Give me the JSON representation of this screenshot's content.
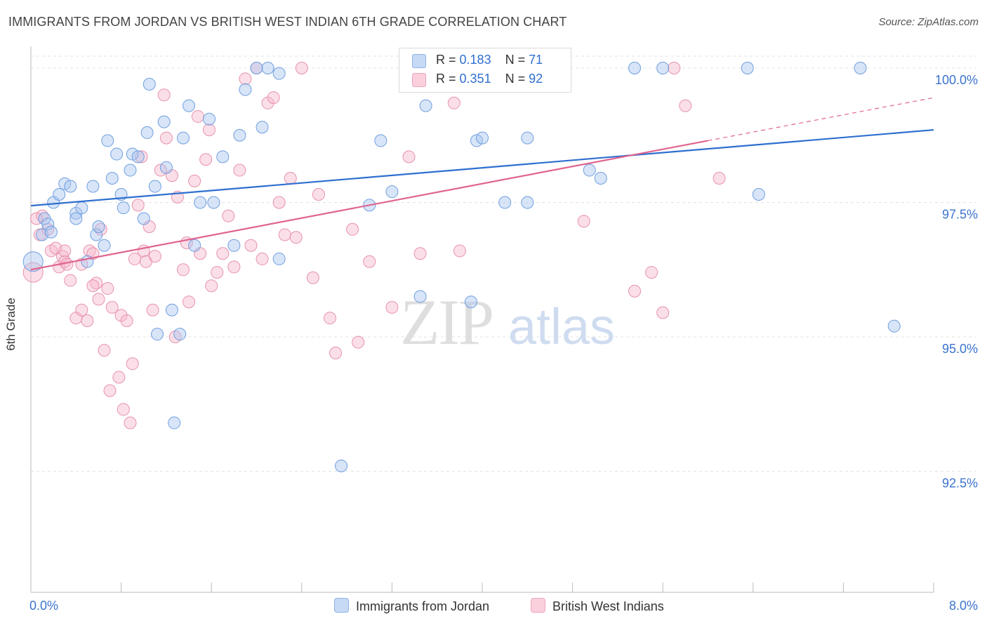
{
  "title": "IMMIGRANTS FROM JORDAN VS BRITISH WEST INDIAN 6TH GRADE CORRELATION CHART",
  "source": "Source: ZipAtlas.com",
  "watermark": {
    "zip": "ZIP",
    "atlas": "atlas"
  },
  "legend": {
    "r_label": "R =",
    "n_label": "N =",
    "rows": [
      {
        "r": "0.183",
        "n": "71",
        "color": "#a9c6ef"
      },
      {
        "r": "0.351",
        "n": "92",
        "color": "#f6b8cb"
      }
    ]
  },
  "bottom_legend": [
    "Immigrants from Jordan",
    "British West Indians"
  ],
  "chart_data": {
    "type": "scatter",
    "title": "IMMIGRANTS FROM JORDAN VS BRITISH WEST INDIAN 6TH GRADE CORRELATION CHART",
    "xlabel": "",
    "ylabel": "6th Grade",
    "xlim": [
      0,
      8
    ],
    "ylim": [
      90.25,
      100.5
    ],
    "x_tick_labels": [
      "0.0%",
      "8.0%"
    ],
    "y_tick_labels": [
      "100.0%",
      "97.5%",
      "95.0%",
      "92.5%"
    ],
    "y_ticks": [
      100.0,
      97.5,
      95.0,
      92.5
    ],
    "grid": true,
    "legend_position": "top-center",
    "series": [
      {
        "name": "Immigrants from Jordan",
        "color": "#a9c6ef",
        "stroke": "#6f9fe0",
        "line_color": "#2e6fd0",
        "trend": {
          "x": [
            0.0,
            8.0
          ],
          "y": [
            97.44,
            98.85
          ]
        },
        "points": [
          [
            0.02,
            96.4
          ],
          [
            0.1,
            96.9
          ],
          [
            0.12,
            97.2
          ],
          [
            0.15,
            97.1
          ],
          [
            0.18,
            96.95
          ],
          [
            0.2,
            97.5
          ],
          [
            0.25,
            97.65
          ],
          [
            0.3,
            97.85
          ],
          [
            0.35,
            97.8
          ],
          [
            0.4,
            97.3
          ],
          [
            0.45,
            97.4
          ],
          [
            0.5,
            96.4
          ],
          [
            0.55,
            97.8
          ],
          [
            0.58,
            96.9
          ],
          [
            0.6,
            97.05
          ],
          [
            0.65,
            96.7
          ],
          [
            0.68,
            98.65
          ],
          [
            0.72,
            97.95
          ],
          [
            0.76,
            98.4
          ],
          [
            0.8,
            97.65
          ],
          [
            0.82,
            97.4
          ],
          [
            0.88,
            98.1
          ],
          [
            0.9,
            98.4
          ],
          [
            0.95,
            98.35
          ],
          [
            1.0,
            97.2
          ],
          [
            1.03,
            98.8
          ],
          [
            1.05,
            99.7
          ],
          [
            1.1,
            97.8
          ],
          [
            1.12,
            95.05
          ],
          [
            1.18,
            99.0
          ],
          [
            1.2,
            98.15
          ],
          [
            1.25,
            95.5
          ],
          [
            1.27,
            93.4
          ],
          [
            1.32,
            95.05
          ],
          [
            1.35,
            98.7
          ],
          [
            1.4,
            99.3
          ],
          [
            1.45,
            96.7
          ],
          [
            1.5,
            97.5
          ],
          [
            1.58,
            99.05
          ],
          [
            1.62,
            97.5
          ],
          [
            1.7,
            98.35
          ],
          [
            1.8,
            96.7
          ],
          [
            1.85,
            98.75
          ],
          [
            1.9,
            99.6
          ],
          [
            2.0,
            100.0
          ],
          [
            2.05,
            98.9
          ],
          [
            2.1,
            100.0
          ],
          [
            2.2,
            96.45
          ],
          [
            2.2,
            99.9
          ],
          [
            2.75,
            92.6
          ],
          [
            3.0,
            97.45
          ],
          [
            3.1,
            98.65
          ],
          [
            3.2,
            97.7
          ],
          [
            3.45,
            95.75
          ],
          [
            3.5,
            99.3
          ],
          [
            3.9,
            95.65
          ],
          [
            3.95,
            98.65
          ],
          [
            4.0,
            98.7
          ],
          [
            4.2,
            97.5
          ],
          [
            4.4,
            97.5
          ],
          [
            4.4,
            98.7
          ],
          [
            4.7,
            100.0
          ],
          [
            4.95,
            98.1
          ],
          [
            5.05,
            97.95
          ],
          [
            5.35,
            100.0
          ],
          [
            5.6,
            100.0
          ],
          [
            6.35,
            100.0
          ],
          [
            6.45,
            97.65
          ],
          [
            7.35,
            100.0
          ],
          [
            7.65,
            95.2
          ],
          [
            0.4,
            97.2
          ]
        ]
      },
      {
        "name": "British West Indians",
        "color": "#f6b8cb",
        "stroke": "#e792ad",
        "line_color": "#e0648e",
        "trend": {
          "x": [
            0.0,
            6.0
          ],
          "y": [
            96.25,
            98.65
          ]
        },
        "trend_dashed": {
          "x": [
            6.0,
            8.0
          ],
          "y": [
            98.65,
            99.45
          ]
        },
        "points": [
          [
            0.02,
            96.2
          ],
          [
            0.08,
            96.9
          ],
          [
            0.1,
            97.25
          ],
          [
            0.15,
            97.0
          ],
          [
            0.18,
            96.6
          ],
          [
            0.22,
            96.65
          ],
          [
            0.25,
            96.3
          ],
          [
            0.28,
            96.5
          ],
          [
            0.3,
            96.4
          ],
          [
            0.32,
            96.35
          ],
          [
            0.35,
            96.05
          ],
          [
            0.4,
            95.35
          ],
          [
            0.45,
            95.5
          ],
          [
            0.5,
            95.3
          ],
          [
            0.52,
            96.6
          ],
          [
            0.55,
            96.55
          ],
          [
            0.58,
            96.0
          ],
          [
            0.6,
            95.7
          ],
          [
            0.62,
            97.0
          ],
          [
            0.65,
            94.75
          ],
          [
            0.68,
            95.9
          ],
          [
            0.7,
            94.0
          ],
          [
            0.72,
            95.55
          ],
          [
            0.78,
            94.25
          ],
          [
            0.8,
            95.4
          ],
          [
            0.82,
            93.65
          ],
          [
            0.85,
            95.3
          ],
          [
            0.88,
            93.4
          ],
          [
            0.9,
            94.5
          ],
          [
            0.92,
            96.45
          ],
          [
            0.95,
            97.45
          ],
          [
            0.98,
            98.35
          ],
          [
            1.0,
            96.6
          ],
          [
            1.02,
            96.4
          ],
          [
            1.05,
            97.05
          ],
          [
            1.08,
            95.5
          ],
          [
            1.1,
            96.5
          ],
          [
            1.15,
            98.1
          ],
          [
            1.18,
            99.5
          ],
          [
            1.2,
            98.7
          ],
          [
            1.25,
            98.0
          ],
          [
            1.28,
            95.0
          ],
          [
            1.3,
            97.6
          ],
          [
            1.35,
            96.25
          ],
          [
            1.38,
            96.75
          ],
          [
            1.4,
            95.65
          ],
          [
            1.45,
            97.9
          ],
          [
            1.48,
            99.1
          ],
          [
            1.5,
            96.55
          ],
          [
            1.55,
            98.3
          ],
          [
            1.58,
            98.85
          ],
          [
            1.6,
            95.95
          ],
          [
            1.65,
            96.2
          ],
          [
            1.7,
            96.55
          ],
          [
            1.75,
            97.25
          ],
          [
            1.8,
            96.3
          ],
          [
            1.85,
            98.1
          ],
          [
            1.9,
            99.8
          ],
          [
            1.95,
            96.7
          ],
          [
            2.0,
            100.0
          ],
          [
            2.05,
            96.45
          ],
          [
            2.1,
            99.35
          ],
          [
            2.15,
            99.45
          ],
          [
            2.2,
            97.5
          ],
          [
            2.25,
            96.9
          ],
          [
            2.3,
            97.95
          ],
          [
            2.35,
            96.85
          ],
          [
            2.4,
            100.0
          ],
          [
            2.5,
            96.1
          ],
          [
            2.55,
            97.65
          ],
          [
            2.65,
            95.35
          ],
          [
            2.7,
            94.7
          ],
          [
            2.85,
            97.0
          ],
          [
            2.9,
            94.9
          ],
          [
            3.0,
            96.4
          ],
          [
            3.2,
            95.55
          ],
          [
            3.35,
            98.35
          ],
          [
            3.45,
            96.55
          ],
          [
            3.75,
            99.35
          ],
          [
            3.8,
            96.6
          ],
          [
            4.2,
            100.0
          ],
          [
            4.9,
            97.15
          ],
          [
            5.35,
            95.85
          ],
          [
            5.5,
            96.2
          ],
          [
            5.6,
            95.45
          ],
          [
            5.7,
            100.0
          ],
          [
            5.8,
            99.3
          ],
          [
            6.1,
            97.95
          ],
          [
            0.05,
            97.2
          ],
          [
            0.3,
            96.6
          ],
          [
            0.45,
            96.35
          ],
          [
            0.55,
            95.95
          ]
        ]
      }
    ]
  }
}
